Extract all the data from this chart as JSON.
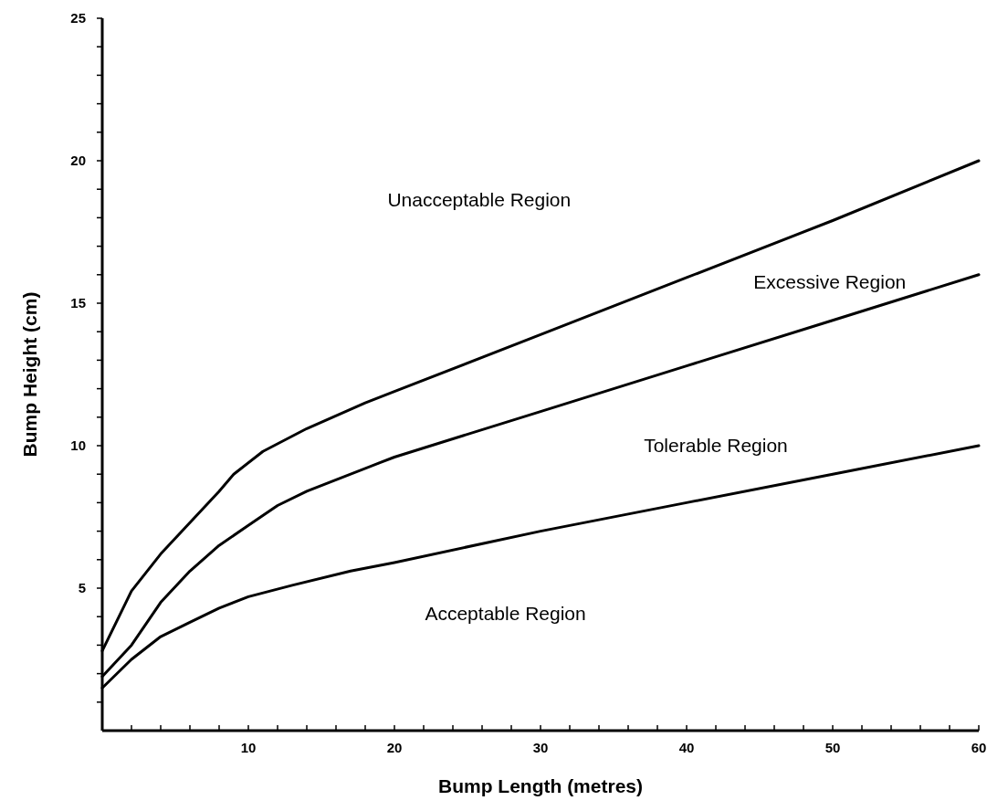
{
  "chart_data": {
    "type": "line",
    "xlabel": "Bump Length (metres)",
    "ylabel": "Bump Height (cm)",
    "xlim": [
      0,
      60
    ],
    "ylim": [
      0,
      25
    ],
    "xticks": [
      {
        "value": 2,
        "label": null
      },
      {
        "value": 4,
        "label": null
      },
      {
        "value": 6,
        "label": null
      },
      {
        "value": 8,
        "label": null
      },
      10,
      {
        "value": 12,
        "label": null
      },
      {
        "value": 14,
        "label": null
      },
      {
        "value": 16,
        "label": null
      },
      {
        "value": 18,
        "label": null
      },
      20,
      {
        "value": 22,
        "label": null
      },
      {
        "value": 24,
        "label": null
      },
      {
        "value": 26,
        "label": null
      },
      {
        "value": 28,
        "label": null
      },
      30,
      {
        "value": 32,
        "label": null
      },
      {
        "value": 34,
        "label": null
      },
      {
        "value": 36,
        "label": null
      },
      {
        "value": 38,
        "label": null
      },
      40,
      {
        "value": 42,
        "label": null
      },
      {
        "value": 44,
        "label": null
      },
      {
        "value": 46,
        "label": null
      },
      {
        "value": 48,
        "label": null
      },
      50,
      {
        "value": 52,
        "label": null
      },
      {
        "value": 54,
        "label": null
      },
      {
        "value": 56,
        "label": null
      },
      {
        "value": 58,
        "label": null
      },
      60
    ],
    "yticks": [
      {
        "value": 1,
        "label": null
      },
      {
        "value": 2,
        "label": null
      },
      {
        "value": 3,
        "label": null
      },
      {
        "value": 4,
        "label": null
      },
      5,
      {
        "value": 6,
        "label": null
      },
      {
        "value": 7,
        "label": null
      },
      {
        "value": 8,
        "label": null
      },
      {
        "value": 9,
        "label": null
      },
      10,
      {
        "value": 11,
        "label": null
      },
      {
        "value": 12,
        "label": null
      },
      {
        "value": 13,
        "label": null
      },
      {
        "value": 14,
        "label": null
      },
      15,
      {
        "value": 16,
        "label": null
      },
      {
        "value": 17,
        "label": null
      },
      {
        "value": 18,
        "label": null
      },
      {
        "value": 19,
        "label": null
      },
      20,
      {
        "value": 21,
        "label": null
      },
      {
        "value": 22,
        "label": null
      },
      {
        "value": 23,
        "label": null
      },
      {
        "value": 24,
        "label": null
      },
      25
    ],
    "grid": false,
    "marker": "none",
    "line_style": "solid",
    "series": [
      {
        "color": "#000000",
        "x": [
          0,
          2,
          4,
          6,
          8,
          9,
          11,
          14,
          18,
          20,
          30,
          40,
          50,
          60
        ],
        "values": [
          2.8,
          4.9,
          6.2,
          7.3,
          8.4,
          9.0,
          9.8,
          10.6,
          11.5,
          11.9,
          13.9,
          15.9,
          17.9,
          20
        ]
      },
      {
        "color": "#000000",
        "x": [
          0,
          2,
          4,
          6,
          8,
          10,
          12,
          14,
          16,
          19,
          20,
          30,
          40,
          50,
          60
        ],
        "values": [
          1.9,
          3.0,
          4.5,
          5.6,
          6.5,
          7.2,
          7.9,
          8.4,
          8.8,
          9.4,
          9.6,
          11.2,
          12.8,
          14.4,
          16
        ]
      },
      {
        "color": "#000000",
        "x": [
          0,
          2,
          4,
          6,
          8,
          10,
          13,
          17,
          20,
          30,
          40,
          50,
          60
        ],
        "values": [
          1.5,
          2.5,
          3.3,
          3.8,
          4.3,
          4.7,
          5.1,
          5.6,
          5.9,
          7.0,
          8.0,
          9.0,
          10
        ]
      }
    ],
    "annotations": [
      "Unacceptable Region",
      "Excessive Region",
      "Tolerable Region",
      "Acceptable Region"
    ]
  }
}
